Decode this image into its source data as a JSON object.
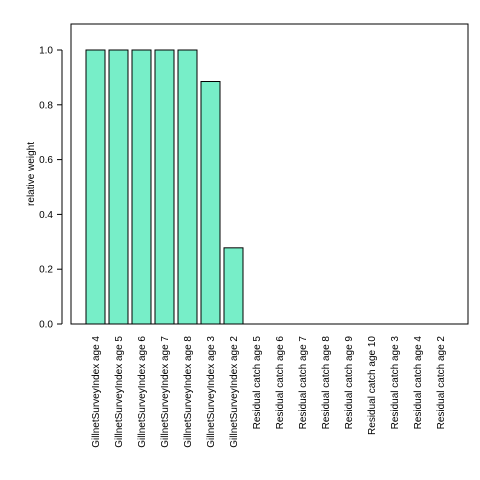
{
  "chart_data": {
    "type": "bar",
    "ylabel": "relative weight",
    "xlabel": "",
    "ylim": [
      0,
      1.1
    ],
    "yticks": [
      "0.0",
      "0.2",
      "0.4",
      "0.6",
      "0.8",
      "1.0"
    ],
    "grid": false,
    "bar_color": "#77eec8",
    "bar_edge_color": "#000000",
    "categories": [
      "GillnetSurveyIndex age 4",
      "GillnetSurveyIndex age 5",
      "GillnetSurveyIndex age 6",
      "GillnetSurveyIndex age 7",
      "GillnetSurveyIndex age 8",
      "GillnetSurveyIndex age 3",
      "GillnetSurveyIndex age 2",
      "Residual catch age 5",
      "Residual catch age 6",
      "Residual catch age 7",
      "Residual catch age 8",
      "Residual catch age 9",
      "Residual catch age 10",
      "Residual catch age 3",
      "Residual catch age 4",
      "Residual catch age 2"
    ],
    "values": [
      1.0,
      1.0,
      1.0,
      1.0,
      1.0,
      0.885,
      0.278,
      0,
      0,
      0,
      0,
      0,
      0,
      0,
      0,
      0
    ]
  }
}
